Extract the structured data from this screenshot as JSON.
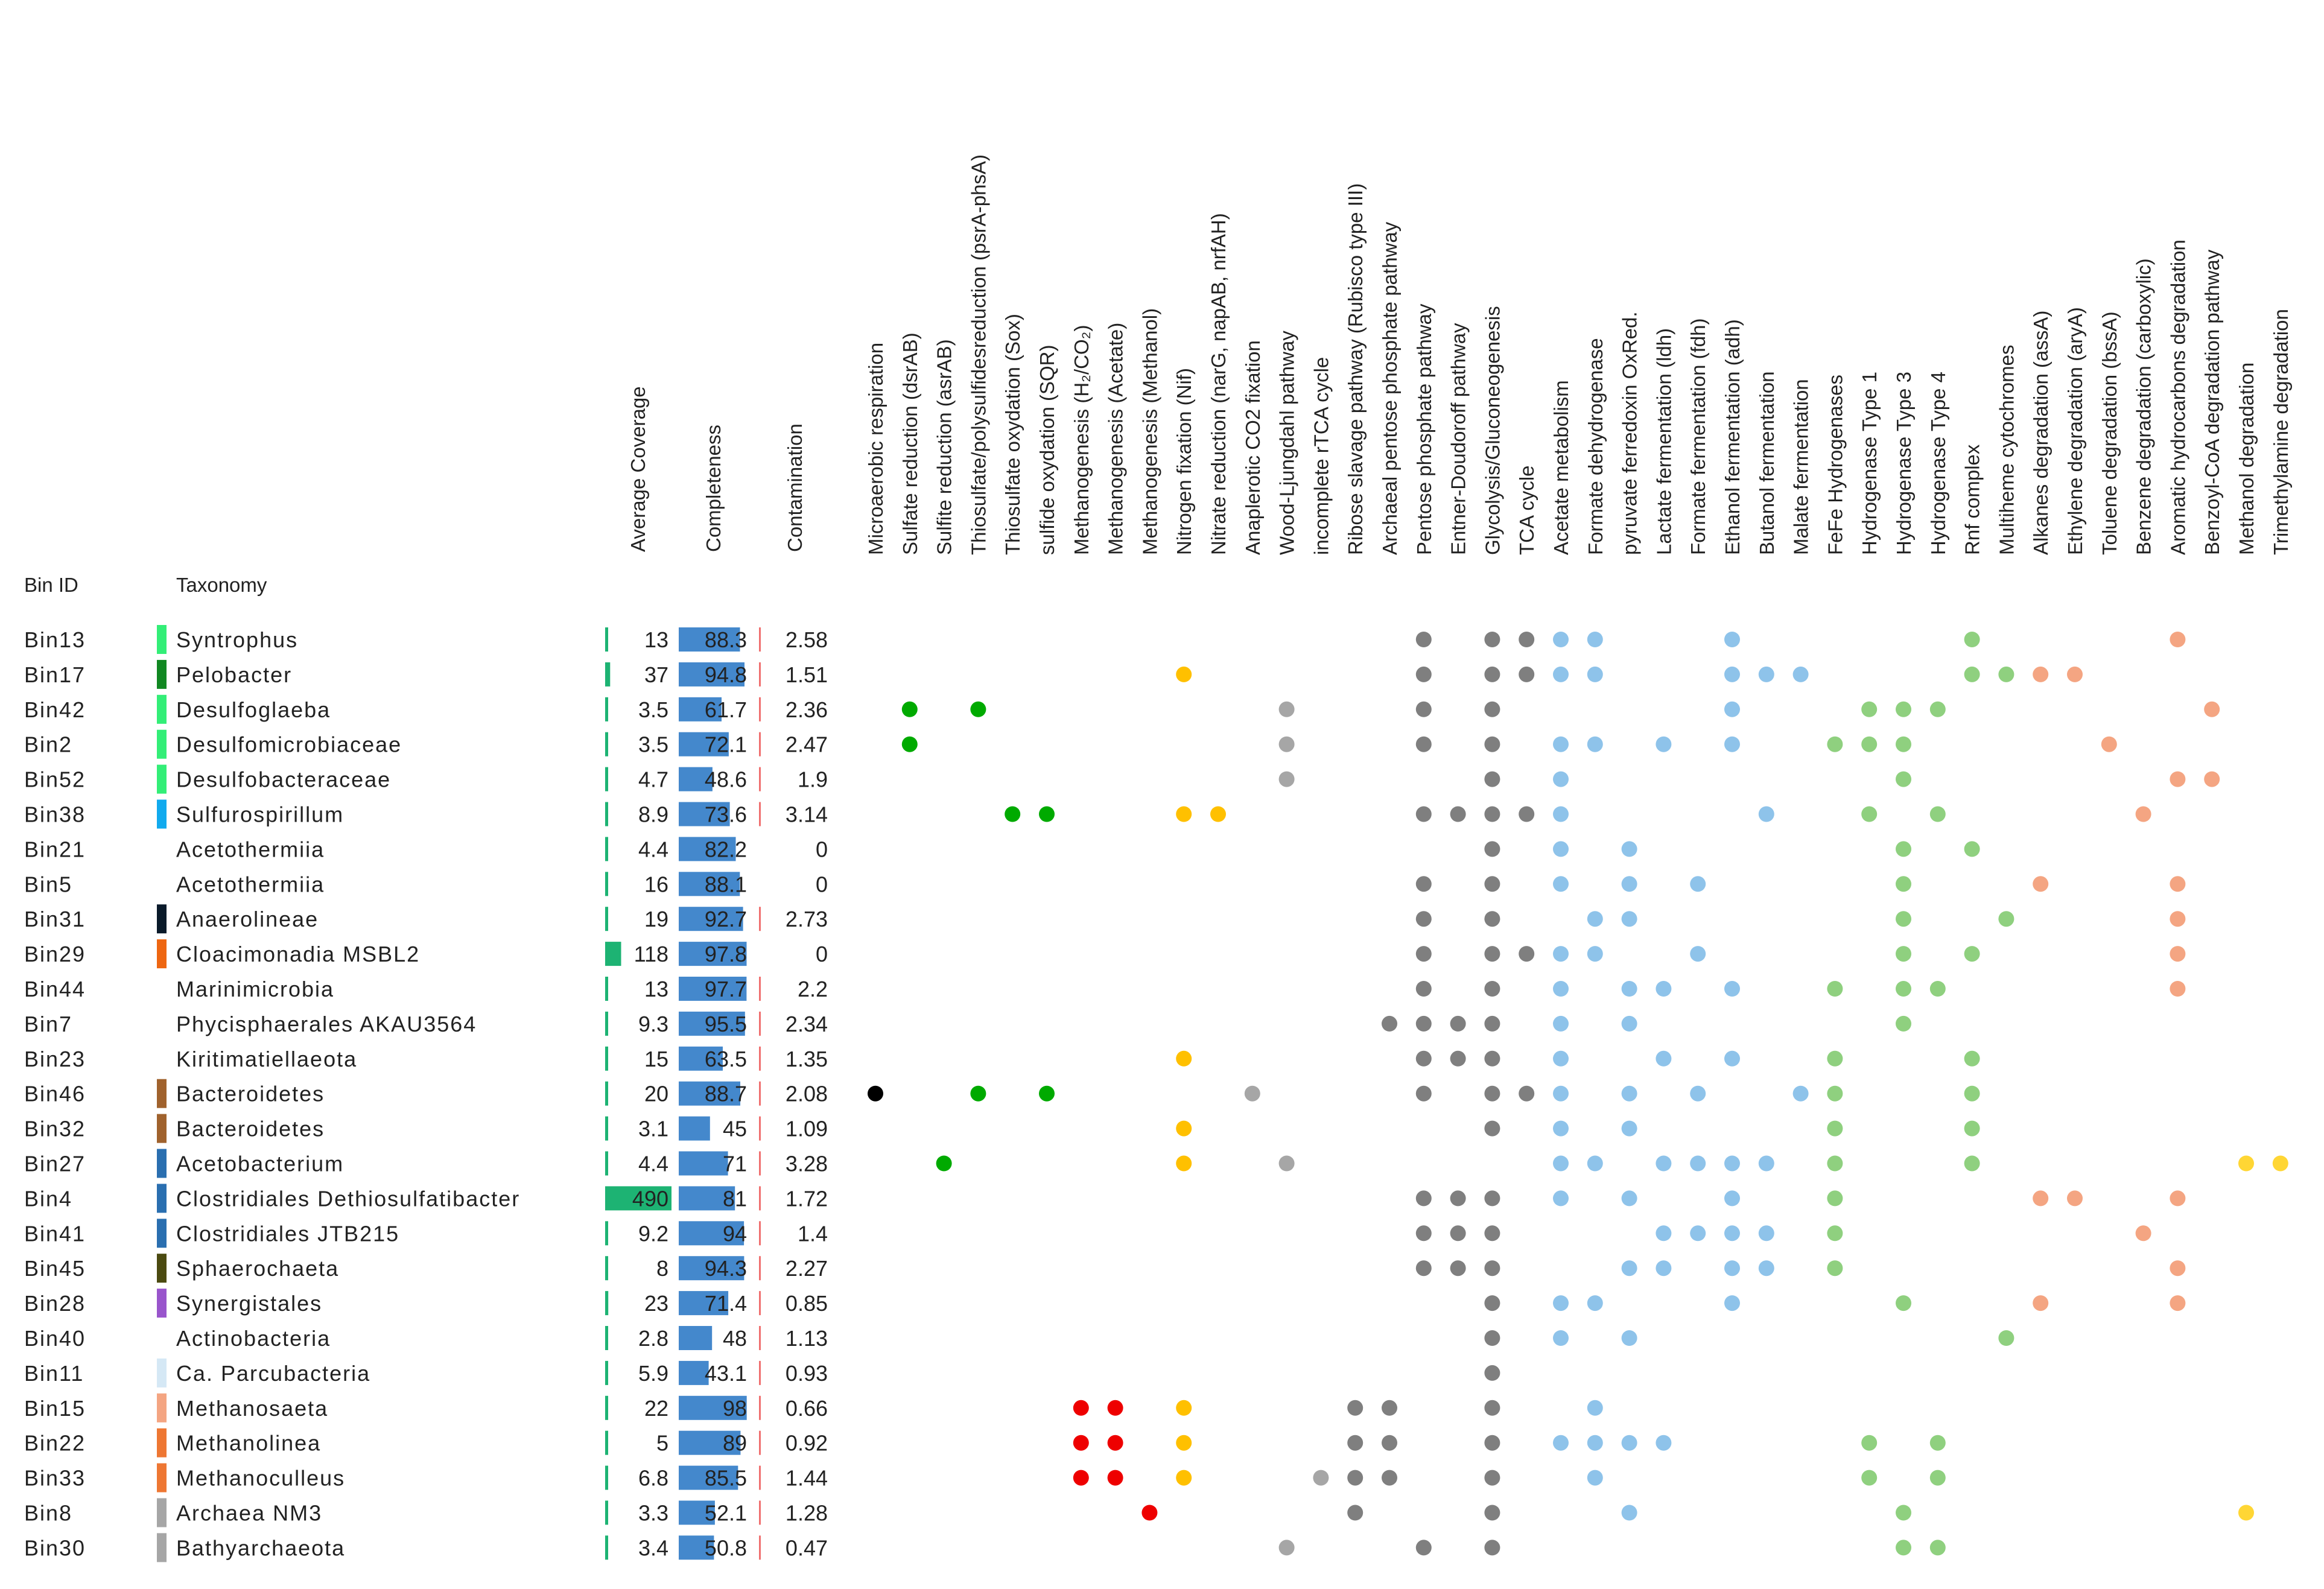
{
  "chart_data": {
    "type": "table",
    "headers": {
      "bin_id": "Bin ID",
      "taxonomy": "Taxonomy",
      "average_coverage": "Average Coverage",
      "completeness": "Completeness",
      "contamination": "Contamination"
    },
    "pathways": [
      "Microaerobic respiration",
      "Sulfate reduction (dsrAB)",
      "Sulfite reduction (asrAB)",
      "Thiosulfate/polysulfidesreduction (psrA-phsA)",
      "Thiosulfate oxydation (Sox)",
      "sulfide oxydation (SQR)",
      "Methanogenesis (H₂/CO₂)",
      "Methanogenesis (Acetate)",
      "Methanogenesis (Methanol)",
      "Nitrogen fixation (Nif)",
      "Nitrate reduction (narG, napAB, nrfAH)",
      "Anaplerotic CO2 fixation",
      "Wood-Ljungdahl pathway",
      "incomplete rTCA cycle",
      "Ribose slavage pathway (Rubisco type III)",
      "Archaeal pentose phosphate pathway",
      "Pentose phosphate pathway",
      "Entner-Doudoroff pathway",
      "Glycolysis/Gluconeogenesis",
      "TCA cycle",
      "Acetate metabolism",
      "Formate dehydrogenase",
      "pyruvate ferredoxin OxRed.",
      "Lactate fermentation (ldh)",
      "Formate fermentation (fdh)",
      "Ethanol fermentation (adh)",
      "Butanol fermentation",
      "Malate fermentation",
      "FeFe Hydrogenases",
      "Hydrogenase Type 1",
      "Hydrogenase Type 3",
      "Hydrogenase Type 4",
      "Rnf complex",
      "Multiheme cytochromes",
      "Alkanes degradation (assA)",
      "Ethylene degradation (aryA)",
      "Toluene degradation (bssA)",
      "Benzene degradation (carboxylic)",
      "Aromatic hydrocarbons degradation",
      "Benzoyl-CoA degradation pathway",
      "Methanol degradation",
      "Trimethylamine degradation"
    ],
    "pathway_colors": [
      "#000000",
      "#00aa00",
      "#00aa00",
      "#00aa00",
      "#00aa00",
      "#00aa00",
      "#ee0000",
      "#ee0000",
      "#ee0000",
      "#ffc000",
      "#ffc000",
      "#a6a6a6",
      "#a6a6a6",
      "#a6a6a6",
      "#7f7f7f",
      "#7f7f7f",
      "#7f7f7f",
      "#7f7f7f",
      "#7f7f7f",
      "#7f7f7f",
      "#8ec3ea",
      "#8ec3ea",
      "#8ec3ea",
      "#8ec3ea",
      "#8ec3ea",
      "#8ec3ea",
      "#8ec3ea",
      "#8ec3ea",
      "#8fd07f",
      "#8fd07f",
      "#8fd07f",
      "#8fd07f",
      "#8fd07f",
      "#8fd07f",
      "#f4a582",
      "#f4a582",
      "#f4a582",
      "#f4a582",
      "#f4a582",
      "#f4a582",
      "#ffd634",
      "#ffd634"
    ],
    "coverage_max": 490,
    "completeness_max": 100,
    "rows": [
      {
        "bin": "Bin13",
        "taxonomy": "Syntrophus",
        "color": "#33ee77",
        "coverage": 13,
        "coverage_label": "13",
        "completeness": 88.3,
        "completeness_label": "88.3",
        "contamination": 2.58,
        "contamination_label": "2.58",
        "pathways": [
          16,
          18,
          19,
          20,
          21,
          25,
          32,
          38
        ]
      },
      {
        "bin": "Bin17",
        "taxonomy": "Pelobacter",
        "color": "#118822",
        "coverage": 37,
        "coverage_label": "37",
        "completeness": 94.8,
        "completeness_label": "94.8",
        "contamination": 1.51,
        "contamination_label": "1.51",
        "pathways": [
          9,
          16,
          18,
          19,
          20,
          21,
          25,
          26,
          27,
          32,
          33,
          34,
          35
        ]
      },
      {
        "bin": "Bin42",
        "taxonomy": "Desulfoglaeba",
        "color": "#33ee77",
        "coverage": 3.5,
        "coverage_label": "3.5",
        "completeness": 61.7,
        "completeness_label": "61.7",
        "contamination": 2.36,
        "contamination_label": "2.36",
        "pathways": [
          1,
          3,
          12,
          16,
          18,
          25,
          29,
          30,
          31,
          39
        ]
      },
      {
        "bin": "Bin2",
        "taxonomy": "Desulfomicrobiaceae",
        "color": "#33ee77",
        "coverage": 3.5,
        "coverage_label": "3.5",
        "completeness": 72.1,
        "completeness_label": "72.1",
        "contamination": 2.47,
        "contamination_label": "2.47",
        "pathways": [
          1,
          12,
          16,
          18,
          20,
          21,
          23,
          25,
          28,
          29,
          30,
          36
        ]
      },
      {
        "bin": "Bin52",
        "taxonomy": "Desulfobacteraceae",
        "color": "#33ee77",
        "coverage": 4.7,
        "coverage_label": "4.7",
        "completeness": 48.6,
        "completeness_label": "48.6",
        "contamination": 1.9,
        "contamination_label": "1.9",
        "pathways": [
          12,
          18,
          20,
          30,
          38,
          39
        ]
      },
      {
        "bin": "Bin38",
        "taxonomy": "Sulfurospirillum",
        "color": "#11aaee",
        "coverage": 8.9,
        "coverage_label": "8.9",
        "completeness": 73.6,
        "completeness_label": "73.6",
        "contamination": 3.14,
        "contamination_label": "3.14",
        "pathways": [
          4,
          5,
          9,
          10,
          16,
          17,
          18,
          19,
          20,
          26,
          29,
          31,
          37
        ]
      },
      {
        "bin": "Bin21",
        "taxonomy": "Acetothermiia",
        "color": "",
        "coverage": 4.4,
        "coverage_label": "4.4",
        "completeness": 82.2,
        "completeness_label": "82.2",
        "contamination": 0,
        "contamination_label": "0",
        "pathways": [
          18,
          20,
          22,
          30,
          32
        ]
      },
      {
        "bin": "Bin5",
        "taxonomy": "Acetothermiia",
        "color": "",
        "coverage": 16,
        "coverage_label": "16",
        "completeness": 88.1,
        "completeness_label": "88.1",
        "contamination": 0,
        "contamination_label": "0",
        "pathways": [
          16,
          18,
          20,
          22,
          24,
          30,
          34,
          38
        ]
      },
      {
        "bin": "Bin31",
        "taxonomy": "Anaerolineae",
        "color": "#0a1a2a",
        "coverage": 19,
        "coverage_label": "19",
        "completeness": 92.7,
        "completeness_label": "92.7",
        "contamination": 2.73,
        "contamination_label": "2.73",
        "pathways": [
          16,
          18,
          21,
          22,
          30,
          33,
          38
        ]
      },
      {
        "bin": "Bin29",
        "taxonomy": "Cloacimonadia MSBL2",
        "color": "#ee6611",
        "coverage": 118,
        "coverage_label": "118",
        "completeness": 97.8,
        "completeness_label": "97.8",
        "contamination": 0,
        "contamination_label": "0",
        "pathways": [
          16,
          18,
          19,
          20,
          21,
          24,
          30,
          32,
          38
        ]
      },
      {
        "bin": "Bin44",
        "taxonomy": "Marinimicrobia",
        "color": "",
        "coverage": 13,
        "coverage_label": "13",
        "completeness": 97.7,
        "completeness_label": "97.7",
        "contamination": 2.2,
        "contamination_label": "2.2",
        "pathways": [
          16,
          18,
          20,
          22,
          23,
          25,
          28,
          30,
          31,
          38
        ]
      },
      {
        "bin": "Bin7",
        "taxonomy": "Phycisphaerales AKAU3564",
        "color": "",
        "coverage": 9.3,
        "coverage_label": "9.3",
        "completeness": 95.5,
        "completeness_label": "95.5",
        "contamination": 2.34,
        "contamination_label": "2.34",
        "pathways": [
          15,
          16,
          17,
          18,
          20,
          22,
          30
        ]
      },
      {
        "bin": "Bin23",
        "taxonomy": "Kiritimatiellaeota",
        "color": "",
        "coverage": 15,
        "coverage_label": "15",
        "completeness": 63.5,
        "completeness_label": "63.5",
        "contamination": 1.35,
        "contamination_label": "1.35",
        "pathways": [
          9,
          16,
          17,
          18,
          20,
          23,
          25,
          28,
          32
        ]
      },
      {
        "bin": "Bin46",
        "taxonomy": "Bacteroidetes",
        "color": "#a0622d",
        "coverage": 20,
        "coverage_label": "20",
        "completeness": 88.7,
        "completeness_label": "88.7",
        "contamination": 2.08,
        "contamination_label": "2.08",
        "pathways": [
          0,
          3,
          5,
          11,
          16,
          18,
          19,
          20,
          22,
          24,
          27,
          28,
          32
        ]
      },
      {
        "bin": "Bin32",
        "taxonomy": "Bacteroidetes",
        "color": "#a0622d",
        "coverage": 3.1,
        "coverage_label": "3.1",
        "completeness": 45,
        "completeness_label": "45",
        "contamination": 1.09,
        "contamination_label": "1.09",
        "pathways": [
          9,
          18,
          20,
          22,
          28,
          32
        ]
      },
      {
        "bin": "Bin27",
        "taxonomy": "Acetobacterium",
        "color": "#2a6fb0",
        "coverage": 4.4,
        "coverage_label": "4.4",
        "completeness": 71,
        "completeness_label": "71",
        "contamination": 3.28,
        "contamination_label": "3.28",
        "pathways": [
          2,
          9,
          12,
          20,
          21,
          23,
          24,
          25,
          26,
          28,
          32,
          40,
          41
        ]
      },
      {
        "bin": "Bin4",
        "taxonomy": "Clostridiales Dethiosulfatibacter",
        "color": "#2a6fb0",
        "coverage": 490,
        "coverage_label": "490",
        "completeness": 81,
        "completeness_label": "81",
        "contamination": 1.72,
        "contamination_label": "1.72",
        "pathways": [
          16,
          17,
          18,
          20,
          22,
          25,
          28,
          34,
          35,
          38
        ]
      },
      {
        "bin": "Bin41",
        "taxonomy": "Clostridiales JTB215",
        "color": "#2a6fb0",
        "coverage": 9.2,
        "coverage_label": "9.2",
        "completeness": 94,
        "completeness_label": "94",
        "contamination": 1.4,
        "contamination_label": "1.4",
        "pathways": [
          16,
          17,
          18,
          23,
          24,
          25,
          26,
          28,
          37
        ]
      },
      {
        "bin": "Bin45",
        "taxonomy": "Sphaerochaeta",
        "color": "#4b4a10",
        "coverage": 8,
        "coverage_label": "8",
        "completeness": 94.3,
        "completeness_label": "94.3",
        "contamination": 2.27,
        "contamination_label": "2.27",
        "pathways": [
          16,
          17,
          18,
          22,
          23,
          25,
          26,
          28,
          38
        ]
      },
      {
        "bin": "Bin28",
        "taxonomy": "Synergistales",
        "color": "#9955cc",
        "coverage": 23,
        "coverage_label": "23",
        "completeness": 71.4,
        "completeness_label": "71.4",
        "contamination": 0.85,
        "contamination_label": "0.85",
        "pathways": [
          18,
          20,
          21,
          25,
          30,
          34,
          38
        ]
      },
      {
        "bin": "Bin40",
        "taxonomy": "Actinobacteria",
        "color": "",
        "coverage": 2.8,
        "coverage_label": "2.8",
        "completeness": 48,
        "completeness_label": "48",
        "contamination": 1.13,
        "contamination_label": "1.13",
        "pathways": [
          18,
          20,
          22,
          33
        ]
      },
      {
        "bin": "Bin11",
        "taxonomy": "Ca. Parcubacteria",
        "color": "#d5e8f5",
        "coverage": 5.9,
        "coverage_label": "5.9",
        "completeness": 43.1,
        "completeness_label": "43.1",
        "contamination": 0.93,
        "contamination_label": "0.93",
        "pathways": [
          18
        ]
      },
      {
        "bin": "Bin15",
        "taxonomy": "Methanosaeta",
        "color": "#f4a582",
        "coverage": 22,
        "coverage_label": "22",
        "completeness": 98,
        "completeness_label": "98",
        "contamination": 0.66,
        "contamination_label": "0.66",
        "pathways": [
          6,
          7,
          9,
          14,
          15,
          18,
          21
        ]
      },
      {
        "bin": "Bin22",
        "taxonomy": "Methanolinea",
        "color": "#ee7733",
        "coverage": 5,
        "coverage_label": "5",
        "completeness": 89,
        "completeness_label": "89",
        "contamination": 0.92,
        "contamination_label": "0.92",
        "pathways": [
          6,
          7,
          9,
          14,
          15,
          18,
          20,
          21,
          22,
          23,
          29,
          31
        ]
      },
      {
        "bin": "Bin33",
        "taxonomy": "Methanoculleus",
        "color": "#ee7733",
        "coverage": 6.8,
        "coverage_label": "6.8",
        "completeness": 85.5,
        "completeness_label": "85.5",
        "contamination": 1.44,
        "contamination_label": "1.44",
        "pathways": [
          6,
          7,
          9,
          13,
          14,
          15,
          18,
          21,
          29,
          31
        ]
      },
      {
        "bin": "Bin8",
        "taxonomy": "Archaea NM3",
        "color": "#a6a6a6",
        "coverage": 3.3,
        "coverage_label": "3.3",
        "completeness": 52.1,
        "completeness_label": "52.1",
        "contamination": 1.28,
        "contamination_label": "1.28",
        "pathways": [
          8,
          14,
          18,
          22,
          30,
          40
        ]
      },
      {
        "bin": "Bin30",
        "taxonomy": "Bathyarchaeota",
        "color": "#a6a6a6",
        "coverage": 3.4,
        "coverage_label": "3.4",
        "completeness": 50.8,
        "completeness_label": "50.8",
        "contamination": 0.47,
        "contamination_label": "0.47",
        "pathways": [
          12,
          16,
          18,
          30,
          31
        ]
      }
    ]
  }
}
